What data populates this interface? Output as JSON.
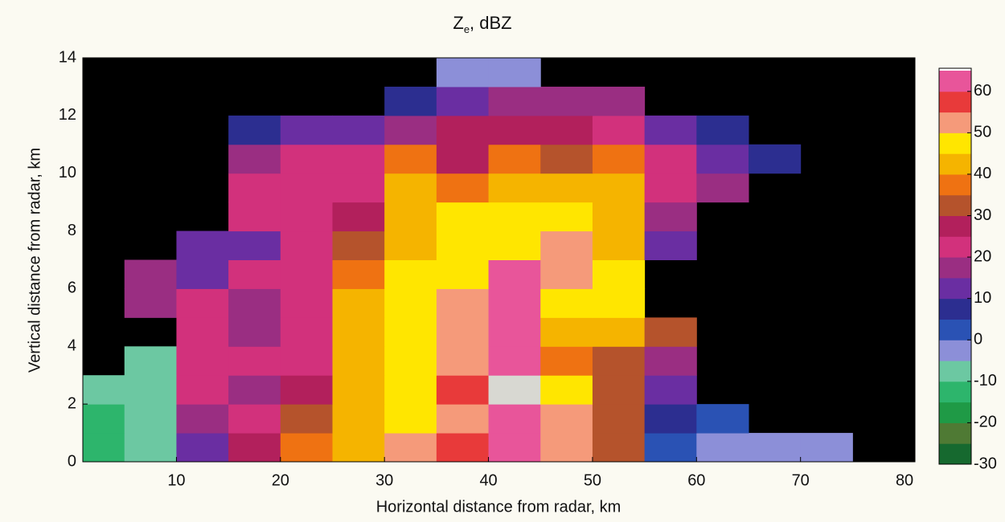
{
  "chart_data": {
    "type": "heatmap",
    "title": {
      "main": "Z",
      "subscript": "e",
      "unit": ", dBZ"
    },
    "xlabel": "Horizontal distance from radar, km",
    "ylabel": "Vertical distance from radar, km",
    "x": [
      2.5,
      7.5,
      12.5,
      17.5,
      22.5,
      27.5,
      32.5,
      37.5,
      42.5,
      47.5,
      52.5,
      57.5,
      62.5,
      67.5,
      72.5,
      77.5
    ],
    "y": [
      0.5,
      1.5,
      2.5,
      3.5,
      4.5,
      5.5,
      6.5,
      7.5,
      8.5,
      9.5,
      10.5,
      11.5,
      12.5,
      13.5
    ],
    "values": [
      [
        -15,
        -10,
        10,
        25,
        35,
        40,
        50,
        55,
        60,
        50,
        30,
        0,
        -5,
        -5,
        -5,
        null
      ],
      [
        -15,
        -10,
        15,
        20,
        30,
        40,
        45,
        50,
        60,
        50,
        30,
        5,
        0,
        null,
        null,
        null
      ],
      [
        -10,
        -10,
        20,
        15,
        25,
        40,
        45,
        55,
        65,
        45,
        30,
        10,
        null,
        null,
        null,
        null
      ],
      [
        null,
        -10,
        20,
        20,
        20,
        40,
        45,
        50,
        60,
        35,
        30,
        15,
        null,
        null,
        null,
        null
      ],
      [
        null,
        null,
        20,
        15,
        20,
        40,
        45,
        50,
        60,
        40,
        40,
        30,
        null,
        null,
        null,
        null
      ],
      [
        null,
        15,
        20,
        15,
        20,
        40,
        45,
        50,
        60,
        45,
        45,
        null,
        null,
        null,
        null,
        null
      ],
      [
        null,
        15,
        10,
        20,
        20,
        35,
        45,
        45,
        60,
        50,
        45,
        null,
        null,
        null,
        null,
        null
      ],
      [
        null,
        null,
        10,
        10,
        20,
        30,
        40,
        45,
        45,
        50,
        40,
        10,
        null,
        null,
        null,
        null
      ],
      [
        null,
        null,
        null,
        20,
        20,
        25,
        40,
        45,
        45,
        45,
        40,
        15,
        null,
        null,
        null,
        null
      ],
      [
        null,
        null,
        null,
        20,
        20,
        20,
        40,
        35,
        40,
        40,
        40,
        20,
        15,
        null,
        null,
        null
      ],
      [
        null,
        null,
        null,
        15,
        20,
        20,
        35,
        25,
        35,
        30,
        35,
        20,
        10,
        5,
        null,
        null
      ],
      [
        null,
        null,
        null,
        5,
        10,
        10,
        15,
        25,
        25,
        25,
        20,
        10,
        5,
        null,
        null,
        null
      ],
      [
        null,
        null,
        null,
        null,
        null,
        null,
        5,
        10,
        15,
        15,
        15,
        null,
        null,
        null,
        null,
        null
      ],
      [
        null,
        null,
        null,
        null,
        null,
        null,
        null,
        -5,
        -5,
        null,
        null,
        null,
        null,
        null,
        null,
        null
      ]
    ],
    "xlim": [
      1,
      81
    ],
    "ylim": [
      0,
      14
    ],
    "xticks": [
      10,
      20,
      30,
      40,
      50,
      60,
      70,
      80
    ],
    "yticks": [
      0,
      2,
      4,
      6,
      8,
      10,
      12,
      14
    ],
    "levels": [
      -30,
      -25,
      -20,
      -15,
      -10,
      -5,
      0,
      5,
      10,
      15,
      20,
      25,
      30,
      35,
      40,
      45,
      50,
      55,
      60,
      65
    ],
    "colors": [
      "#16692f",
      "#4f7a34",
      "#1f9a46",
      "#2db56c",
      "#6cc8a2",
      "#8c8fd8",
      "#2a52b4",
      "#2c2e90",
      "#6a2ea2",
      "#9a2e82",
      "#d2317c",
      "#b2205c",
      "#b5532c",
      "#ef7212",
      "#f5b400",
      "#ffe600",
      "#f59a7a",
      "#e83a3a",
      "#e8559a"
    ],
    "colorbar_top_color": "#d8d8d2",
    "cticks": [
      -30,
      -20,
      -10,
      0,
      10,
      20,
      30,
      40,
      50,
      60
    ],
    "background": "#000000"
  }
}
